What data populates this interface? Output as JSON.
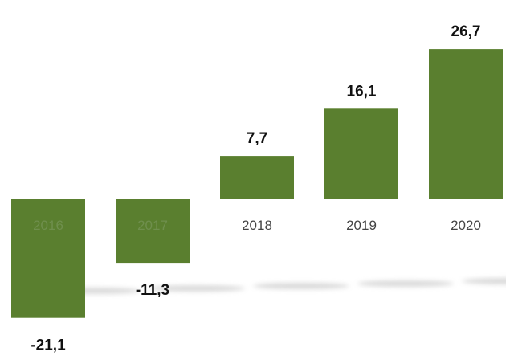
{
  "chart_data": {
    "type": "bar",
    "categories": [
      "2016",
      "2017",
      "2018",
      "2019",
      "2020"
    ],
    "values": [
      -21.1,
      -11.3,
      7.7,
      16.1,
      26.7
    ],
    "value_labels": [
      "-21,1",
      "-11,3",
      "7,7",
      "16,1",
      "26,7"
    ],
    "title": "",
    "xlabel": "",
    "ylabel": "",
    "ylim": [
      -21.1,
      26.7
    ],
    "grid": false,
    "legend": "none",
    "bar_color": "#5a7f2f"
  }
}
